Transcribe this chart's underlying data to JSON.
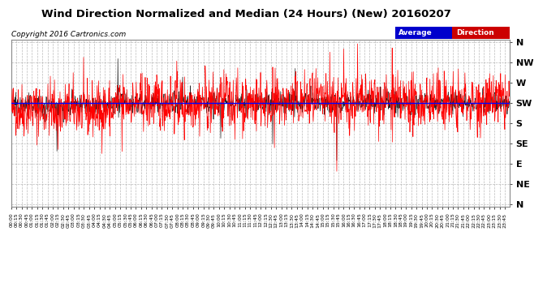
{
  "title": "Wind Direction Normalized and Median (24 Hours) (New) 20160207",
  "copyright_text": "Copyright 2016 Cartronics.com",
  "background_color": "#ffffff",
  "plot_bg_color": "#ffffff",
  "grid_color": "#aaaaaa",
  "title_fontsize": 9.5,
  "y_labels": [
    "N",
    "NW",
    "W",
    "SW",
    "S",
    "SE",
    "E",
    "NE",
    "N"
  ],
  "y_ticks": [
    360,
    315,
    270,
    225,
    180,
    135,
    90,
    45,
    0
  ],
  "avg_direction_value": 225,
  "line_color_red": "#ff0000",
  "line_color_dark": "#222222",
  "avg_line_color": "#0000ff",
  "total_minutes": 1440,
  "seed": 42,
  "ylim_min": 0,
  "ylim_max": 360
}
